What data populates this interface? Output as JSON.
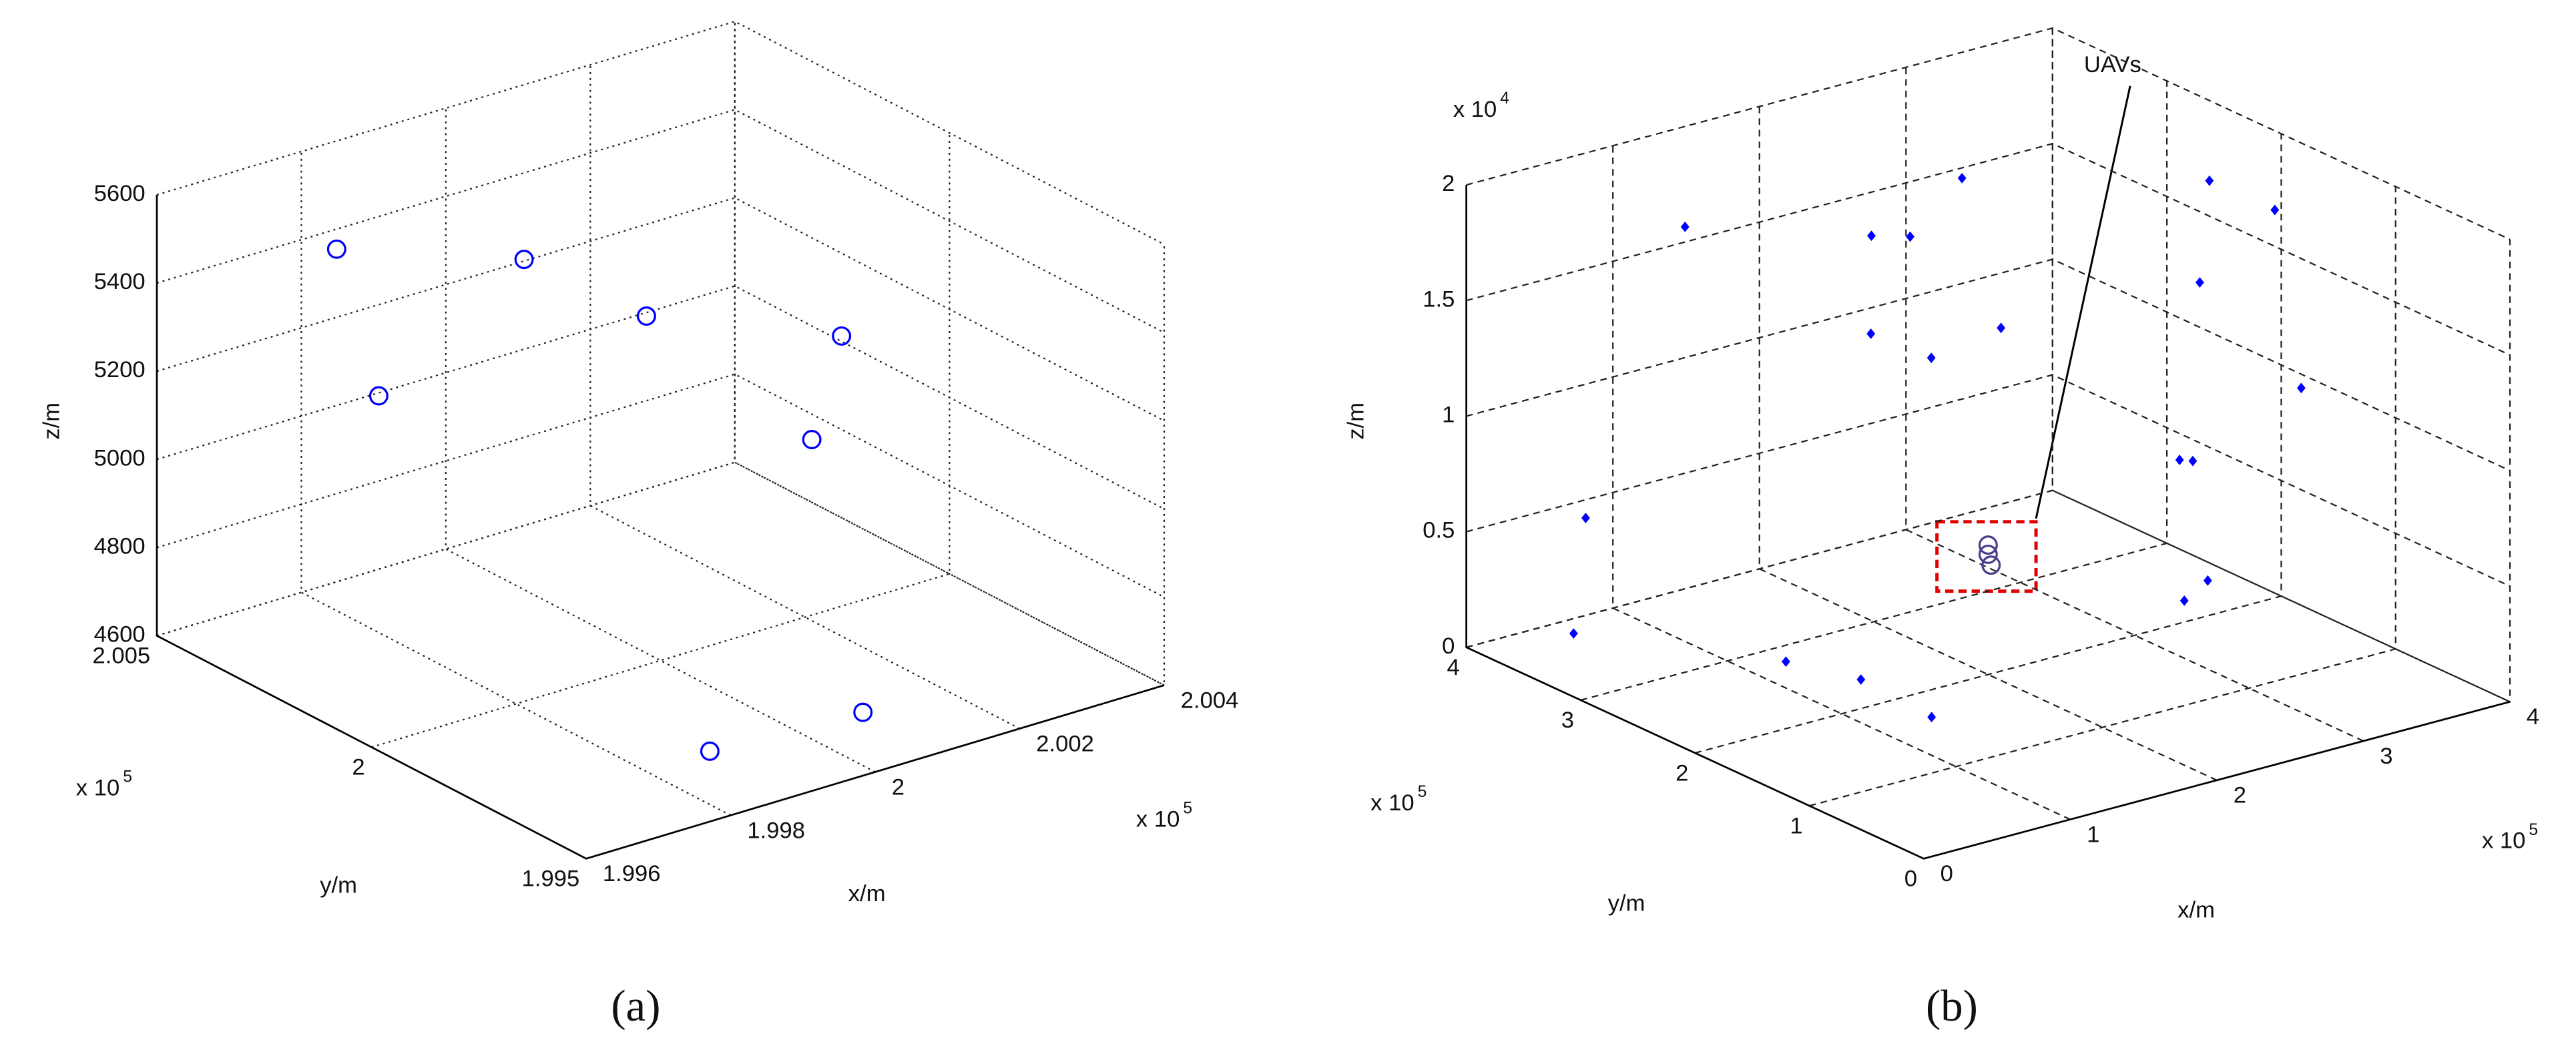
{
  "chart_data": [
    {
      "type": "scatter3d",
      "caption": "(a)",
      "xlabel": "x/m",
      "ylabel": "y/m",
      "zlabel": "z/m",
      "x_multiplier": "x 10",
      "x_exponent": "5",
      "y_multiplier": "x 10",
      "y_exponent": "5",
      "xlim": [
        1.996,
        2.004
      ],
      "xticks": [
        1.996,
        1.998,
        2,
        2.002,
        2.004
      ],
      "ylim": [
        1.995,
        2.005
      ],
      "yticks": [
        1.995,
        2,
        2.005
      ],
      "zlim": [
        4600,
        5600
      ],
      "zticks": [
        4600,
        4800,
        5000,
        5200,
        5400,
        5600
      ],
      "grid": true,
      "grid_style": "dotted",
      "series": [
        {
          "marker": "circle",
          "color": "#0000ff",
          "x": [
            1.9973,
            1.9993,
            2.0004,
            2.0031,
            1.9961,
            2.0015,
            1.9989,
            2.0009
          ],
          "y": [
            2.003,
            2.002,
            2.001,
            2.001,
            2.0,
            1.999,
            1.997,
            1.9968
          ],
          "z": [
            5514,
            5443,
            5311,
            5133,
            5392,
            5078,
            4600,
            4600
          ]
        }
      ]
    },
    {
      "type": "scatter3d",
      "caption": "(b)",
      "xlabel": "x/m",
      "ylabel": "y/m",
      "zlabel": "z/m",
      "x_multiplier": "x 10",
      "x_exponent": "5",
      "y_multiplier": "x 10",
      "y_exponent": "5",
      "z_multiplier": "x 10",
      "z_exponent": "4",
      "xlim": [
        0,
        4
      ],
      "xticks": [
        0,
        1,
        2,
        3,
        4
      ],
      "ylim": [
        0,
        4
      ],
      "yticks": [
        0,
        1,
        2,
        3,
        4
      ],
      "zlim": [
        0,
        2
      ],
      "zticks": [
        0,
        0.5,
        1,
        1.5,
        2
      ],
      "grid": true,
      "grid_style": "dashed",
      "annotation": "UAVs",
      "series": [
        {
          "marker": "dot",
          "color": "#0000ff",
          "x": [
            1.18,
            2.14,
            1.78,
            3.07,
            3.51,
            3.8,
            1.2,
            1.3,
            2.4,
            2.82,
            3.2,
            0.19,
            2.37,
            2.46,
            0.42,
            0.62,
            0.82,
            0.99,
            2.25,
            2.09
          ],
          "y": [
            3.6,
            3.2,
            2.4,
            3.6,
            2.0,
            1.8,
            2.0,
            1.6,
            2.4,
            1.2,
            0.8,
            3.2,
            0.8,
            0.8,
            3.6,
            2.0,
            1.6,
            1.2,
            0.4,
            0.4
          ],
          "z": [
            1.71,
            1.6,
            1.84,
            1.6,
            1.88,
            1.75,
            1.61,
            1.58,
            1.34,
            1.74,
            1.31,
            0.71,
            1.14,
            1.12,
            0.08,
            0.29,
            0.27,
            0.17,
            0.73,
            0.67
          ]
        },
        {
          "marker": "circle",
          "color": "#4b3c8c",
          "x": [
            2,
            2,
            2.02
          ],
          "y": [
            2,
            2,
            2
          ],
          "z": [
            0.56,
            0.52,
            0.47
          ]
        }
      ]
    }
  ]
}
